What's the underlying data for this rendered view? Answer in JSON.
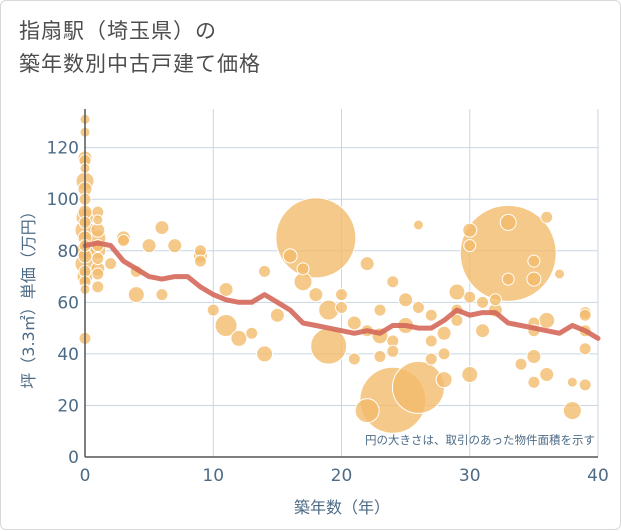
{
  "chart_data": {
    "type": "scatter",
    "title_lines": [
      "指扇駅（埼玉県）の",
      "築年数別中古戸建て価格"
    ],
    "xlabel": "築年数（年）",
    "ylabel": "坪（3.3㎡）単価（万円）",
    "xlim": [
      0,
      40
    ],
    "ylim": [
      0,
      135
    ],
    "xticks": [
      0,
      10,
      20,
      30,
      40
    ],
    "yticks": [
      0,
      20,
      40,
      60,
      80,
      100,
      120
    ],
    "grid": true,
    "note": "円の大きさは、取引のあった物件面積を示す",
    "colors": {
      "bubble": "#f2bc6c",
      "bubble_edge": "#ffffff",
      "trend": "#d4685a",
      "grid": "#c8d6e2",
      "text": "#4d6b86"
    },
    "points": [
      {
        "x": 0,
        "y": 131,
        "s": 5
      },
      {
        "x": 0,
        "y": 126,
        "s": 5
      },
      {
        "x": 0,
        "y": 116,
        "s": 7
      },
      {
        "x": 0,
        "y": 115,
        "s": 6
      },
      {
        "x": 0,
        "y": 112,
        "s": 5
      },
      {
        "x": 0,
        "y": 107,
        "s": 9
      },
      {
        "x": 0,
        "y": 104,
        "s": 7
      },
      {
        "x": 0,
        "y": 100,
        "s": 6
      },
      {
        "x": 0,
        "y": 95,
        "s": 7
      },
      {
        "x": 0,
        "y": 93,
        "s": 9
      },
      {
        "x": 0,
        "y": 91,
        "s": 6
      },
      {
        "x": 0,
        "y": 88,
        "s": 10
      },
      {
        "x": 0,
        "y": 85,
        "s": 7
      },
      {
        "x": 0,
        "y": 82,
        "s": 6
      },
      {
        "x": 0,
        "y": 80,
        "s": 9
      },
      {
        "x": 0,
        "y": 78,
        "s": 7
      },
      {
        "x": 0,
        "y": 75,
        "s": 10
      },
      {
        "x": 0,
        "y": 72,
        "s": 6
      },
      {
        "x": 0,
        "y": 70,
        "s": 8
      },
      {
        "x": 0,
        "y": 68,
        "s": 6
      },
      {
        "x": 0,
        "y": 65,
        "s": 5
      },
      {
        "x": 0,
        "y": 46,
        "s": 6
      },
      {
        "x": 1,
        "y": 95,
        "s": 6
      },
      {
        "x": 1,
        "y": 92,
        "s": 5
      },
      {
        "x": 1,
        "y": 88,
        "s": 7
      },
      {
        "x": 1,
        "y": 85,
        "s": 8
      },
      {
        "x": 1,
        "y": 82,
        "s": 6
      },
      {
        "x": 1,
        "y": 80,
        "s": 8
      },
      {
        "x": 1,
        "y": 77,
        "s": 6
      },
      {
        "x": 1,
        "y": 73,
        "s": 7
      },
      {
        "x": 1,
        "y": 71,
        "s": 6
      },
      {
        "x": 1,
        "y": 66,
        "s": 6
      },
      {
        "x": 2,
        "y": 75,
        "s": 6
      },
      {
        "x": 3,
        "y": 85,
        "s": 7
      },
      {
        "x": 3,
        "y": 84,
        "s": 6
      },
      {
        "x": 4,
        "y": 72,
        "s": 6
      },
      {
        "x": 4,
        "y": 63,
        "s": 8
      },
      {
        "x": 5,
        "y": 82,
        "s": 7
      },
      {
        "x": 6,
        "y": 89,
        "s": 7
      },
      {
        "x": 6,
        "y": 63,
        "s": 6
      },
      {
        "x": 7,
        "y": 82,
        "s": 7
      },
      {
        "x": 9,
        "y": 80,
        "s": 6
      },
      {
        "x": 9,
        "y": 78,
        "s": 7
      },
      {
        "x": 9,
        "y": 76,
        "s": 6
      },
      {
        "x": 10,
        "y": 57,
        "s": 6
      },
      {
        "x": 11,
        "y": 65,
        "s": 7
      },
      {
        "x": 11,
        "y": 51,
        "s": 11
      },
      {
        "x": 12,
        "y": 46,
        "s": 8
      },
      {
        "x": 13,
        "y": 48,
        "s": 6
      },
      {
        "x": 14,
        "y": 72,
        "s": 6
      },
      {
        "x": 14,
        "y": 40,
        "s": 8
      },
      {
        "x": 15,
        "y": 55,
        "s": 7
      },
      {
        "x": 16,
        "y": 78,
        "s": 7
      },
      {
        "x": 17,
        "y": 73,
        "s": 6
      },
      {
        "x": 17,
        "y": 68,
        "s": 9
      },
      {
        "x": 18,
        "y": 85,
        "s": 40
      },
      {
        "x": 18,
        "y": 63,
        "s": 7
      },
      {
        "x": 19,
        "y": 57,
        "s": 10
      },
      {
        "x": 19,
        "y": 43,
        "s": 18
      },
      {
        "x": 20,
        "y": 63,
        "s": 6
      },
      {
        "x": 20,
        "y": 58,
        "s": 6
      },
      {
        "x": 21,
        "y": 52,
        "s": 7
      },
      {
        "x": 21,
        "y": 38,
        "s": 6
      },
      {
        "x": 22,
        "y": 75,
        "s": 7
      },
      {
        "x": 22,
        "y": 49,
        "s": 6
      },
      {
        "x": 22,
        "y": 18,
        "s": 12
      },
      {
        "x": 23,
        "y": 57,
        "s": 6
      },
      {
        "x": 23,
        "y": 47,
        "s": 8
      },
      {
        "x": 23,
        "y": 39,
        "s": 6
      },
      {
        "x": 24,
        "y": 68,
        "s": 6
      },
      {
        "x": 24,
        "y": 45,
        "s": 6
      },
      {
        "x": 24,
        "y": 41,
        "s": 6
      },
      {
        "x": 24,
        "y": 22,
        "s": 33
      },
      {
        "x": 25,
        "y": 61,
        "s": 7
      },
      {
        "x": 25,
        "y": 51,
        "s": 8
      },
      {
        "x": 26,
        "y": 90,
        "s": 5
      },
      {
        "x": 26,
        "y": 58,
        "s": 6
      },
      {
        "x": 26,
        "y": 27,
        "s": 26
      },
      {
        "x": 27,
        "y": 55,
        "s": 6
      },
      {
        "x": 27,
        "y": 45,
        "s": 6
      },
      {
        "x": 27,
        "y": 38,
        "s": 6
      },
      {
        "x": 28,
        "y": 48,
        "s": 7
      },
      {
        "x": 28,
        "y": 40,
        "s": 6
      },
      {
        "x": 28,
        "y": 30,
        "s": 8
      },
      {
        "x": 29,
        "y": 64,
        "s": 8
      },
      {
        "x": 29,
        "y": 57,
        "s": 6
      },
      {
        "x": 29,
        "y": 53,
        "s": 6
      },
      {
        "x": 30,
        "y": 88,
        "s": 7
      },
      {
        "x": 30,
        "y": 82,
        "s": 6
      },
      {
        "x": 30,
        "y": 62,
        "s": 6
      },
      {
        "x": 30,
        "y": 32,
        "s": 8
      },
      {
        "x": 31,
        "y": 60,
        "s": 6
      },
      {
        "x": 31,
        "y": 49,
        "s": 7
      },
      {
        "x": 32,
        "y": 61,
        "s": 6
      },
      {
        "x": 32,
        "y": 57,
        "s": 7
      },
      {
        "x": 33,
        "y": 79,
        "s": 48
      },
      {
        "x": 33,
        "y": 91,
        "s": 8
      },
      {
        "x": 33,
        "y": 69,
        "s": 6
      },
      {
        "x": 34,
        "y": 36,
        "s": 6
      },
      {
        "x": 35,
        "y": 76,
        "s": 6
      },
      {
        "x": 35,
        "y": 69,
        "s": 7
      },
      {
        "x": 35,
        "y": 52,
        "s": 6
      },
      {
        "x": 35,
        "y": 49,
        "s": 6
      },
      {
        "x": 35,
        "y": 39,
        "s": 7
      },
      {
        "x": 35,
        "y": 29,
        "s": 6
      },
      {
        "x": 36,
        "y": 93,
        "s": 6
      },
      {
        "x": 36,
        "y": 53,
        "s": 8
      },
      {
        "x": 36,
        "y": 32,
        "s": 7
      },
      {
        "x": 37,
        "y": 71,
        "s": 5
      },
      {
        "x": 38,
        "y": 29,
        "s": 5
      },
      {
        "x": 38,
        "y": 18,
        "s": 9
      },
      {
        "x": 39,
        "y": 56,
        "s": 6
      },
      {
        "x": 39,
        "y": 55,
        "s": 6
      },
      {
        "x": 39,
        "y": 49,
        "s": 6
      },
      {
        "x": 39,
        "y": 42,
        "s": 6
      },
      {
        "x": 39,
        "y": 28,
        "s": 6
      }
    ],
    "trend": {
      "x": [
        0,
        1,
        2,
        3,
        4,
        5,
        6,
        7,
        8,
        9,
        10,
        11,
        12,
        13,
        14,
        15,
        16,
        17,
        18,
        19,
        20,
        21,
        22,
        23,
        24,
        25,
        26,
        27,
        28,
        29,
        30,
        31,
        32,
        33,
        34,
        35,
        36,
        37,
        38,
        39,
        40
      ],
      "y": [
        82,
        83,
        82,
        76,
        73,
        70,
        69,
        70,
        70,
        66,
        63,
        61,
        60,
        60,
        63,
        60,
        57,
        52,
        51,
        50,
        49,
        48,
        49,
        48,
        51,
        51,
        50,
        50,
        53,
        57,
        55,
        56,
        56,
        52,
        51,
        50,
        49,
        48,
        51,
        49,
        46
      ]
    }
  }
}
